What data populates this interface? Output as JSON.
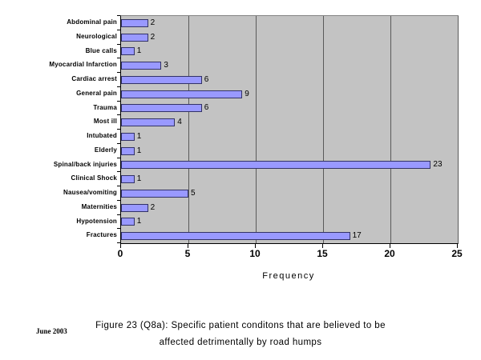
{
  "page": {
    "background": "#FFFFFF"
  },
  "chart_data": {
    "type": "bar",
    "orientation": "horizontal",
    "xlabel": "Frequency",
    "xlim": [
      0,
      25
    ],
    "xticks": [
      0,
      5,
      10,
      15,
      20,
      25
    ],
    "categories": [
      "Abdominal pain",
      "Neurological",
      "Blue calls",
      "Myocardial Infarction",
      "Cardiac arrest",
      "General pain",
      "Trauma",
      "Most ill",
      "Intubated",
      "Elderly",
      "Spinal/back injuries",
      "Clinical Shock",
      "Nausea/vomiting",
      "Maternities",
      "Hypotension",
      "Fractures"
    ],
    "values": [
      2,
      2,
      1,
      3,
      6,
      9,
      6,
      4,
      1,
      1,
      23,
      1,
      5,
      2,
      1,
      17
    ],
    "data_labels": true,
    "grid": true,
    "legend": false,
    "colors": {
      "bar_fill": "#9999FF",
      "bar_border": "#333366",
      "plot_bg": "#C3C3C3",
      "plot_border": "#848484",
      "gridline": "#5A5A5A",
      "axis": "#000000"
    }
  },
  "caption": {
    "line1": "Figure 23 (Q8a):  Specific patient conditons that are believed to be",
    "line2": "affected detrimentally by road humps"
  },
  "footnote": "June 2003"
}
